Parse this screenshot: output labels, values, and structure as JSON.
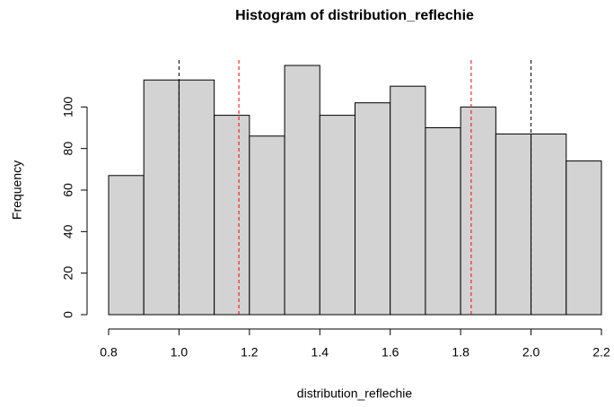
{
  "chart_data": {
    "type": "histogram",
    "title": "Histogram of distribution_reflechie",
    "xlabel": "distribution_reflechie",
    "ylabel": "Frequency",
    "bins": [
      0.8,
      0.9,
      1.0,
      1.1,
      1.2,
      1.3,
      1.4,
      1.5,
      1.6,
      1.7,
      1.8,
      1.9,
      2.0,
      2.1,
      2.2
    ],
    "values": [
      67,
      113,
      113,
      96,
      86,
      120,
      96,
      102,
      110,
      90,
      100,
      87,
      87,
      74
    ],
    "color": "#d3d3d3",
    "xlim": [
      0.8,
      2.2
    ],
    "xticks": [
      0.8,
      {
        "value": 1,
        "label": "1.0"
      },
      1.2,
      1.4,
      1.6,
      1.8,
      {
        "value": 2,
        "label": "2.0"
      },
      2.2
    ],
    "ylim": [
      0,
      120
    ],
    "yticks": [
      0,
      20,
      40,
      60,
      80,
      100
    ],
    "vlines": [
      {
        "value": 1,
        "color": "#000000"
      },
      {
        "value": 2,
        "color": "#000000"
      },
      {
        "value": 1.17,
        "color": "#ff0000"
      },
      {
        "value": 1.83,
        "color": "#ff0000"
      }
    ]
  }
}
